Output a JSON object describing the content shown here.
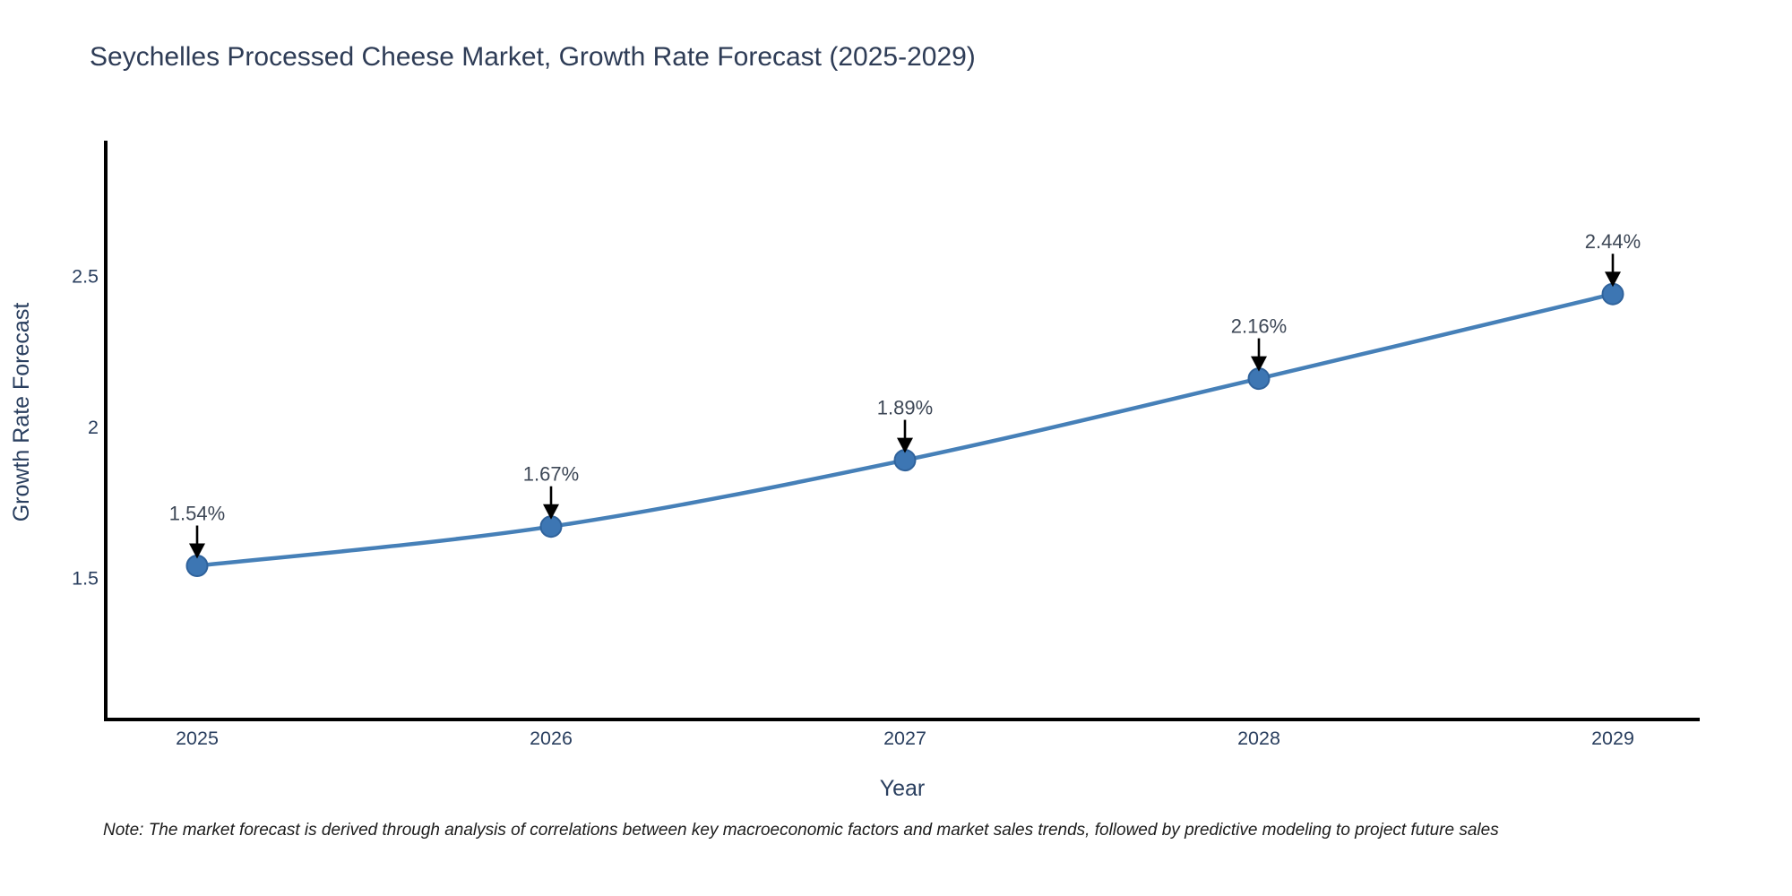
{
  "chart_data": {
    "type": "line",
    "title": "Seychelles Processed Cheese Market, Growth Rate Forecast (2025-2029)",
    "x": [
      "2025",
      "2026",
      "2027",
      "2028",
      "2029"
    ],
    "y": [
      1.54,
      1.67,
      1.89,
      2.16,
      2.44
    ],
    "point_labels": [
      "1.54%",
      "1.67%",
      "1.89%",
      "2.16%",
      "2.44%"
    ],
    "xlabel": "Year",
    "ylabel": "Growth Rate Forecast",
    "yticks": [
      1.5,
      2,
      2.5
    ],
    "ytick_labels": [
      "1.5",
      "2",
      "2.5"
    ],
    "ylim": [
      1.03,
      2.95
    ],
    "grid": false,
    "legend": false,
    "colors": {
      "line": "#4680b8",
      "marker_fill": "#3d76b3",
      "marker_edge": "#30639c",
      "axis": "#000000",
      "tick_text": "#2a3f5f",
      "title_text": "#2e3c56",
      "annotation_text": "#3d4756",
      "arrow": "#000000"
    },
    "note": "Note: The market forecast is derived through analysis of correlations between key macroeconomic factors and market sales trends, followed by predictive modeling to project future sales"
  }
}
